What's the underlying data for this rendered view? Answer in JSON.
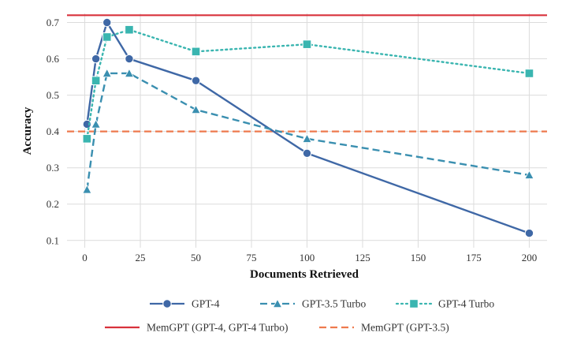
{
  "chart_data": {
    "type": "line",
    "xlabel": "Documents Retrieved",
    "ylabel": "Accuracy",
    "xlim": [
      -8,
      208
    ],
    "ylim": [
      0.08,
      0.725
    ],
    "xticks": [
      0,
      25,
      50,
      75,
      100,
      125,
      150,
      175,
      200
    ],
    "yticks": [
      0.1,
      0.2,
      0.3,
      0.4,
      0.5,
      0.6,
      0.7
    ],
    "grid": true,
    "legend_position": "bottom",
    "series": [
      {
        "name": "GPT-4",
        "color": "#3f68a6",
        "line_style": "solid",
        "marker": "circle",
        "x": [
          1,
          5,
          10,
          20,
          50,
          100,
          200
        ],
        "y": [
          0.42,
          0.6,
          0.7,
          0.6,
          0.54,
          0.34,
          0.12
        ]
      },
      {
        "name": "GPT-3.5 Turbo",
        "color": "#3a8fb0",
        "line_style": "dashed",
        "marker": "triangle",
        "x": [
          1,
          5,
          10,
          20,
          50,
          100,
          200
        ],
        "y": [
          0.24,
          0.42,
          0.56,
          0.56,
          0.46,
          0.38,
          0.28
        ]
      },
      {
        "name": "GPT-4 Turbo",
        "color": "#3ab5b0",
        "line_style": "dotted",
        "marker": "square",
        "x": [
          1,
          5,
          10,
          20,
          50,
          100,
          200
        ],
        "y": [
          0.38,
          0.54,
          0.66,
          0.68,
          0.62,
          0.64,
          0.56
        ]
      }
    ],
    "reference_lines": [
      {
        "name": "MemGPT (GPT-4, GPT-4 Turbo)",
        "y": 0.72,
        "color": "#d8323c",
        "line_style": "solid"
      },
      {
        "name": "MemGPT (GPT-3.5)",
        "y": 0.4,
        "color": "#ee7a4e",
        "line_style": "dashed"
      }
    ]
  }
}
